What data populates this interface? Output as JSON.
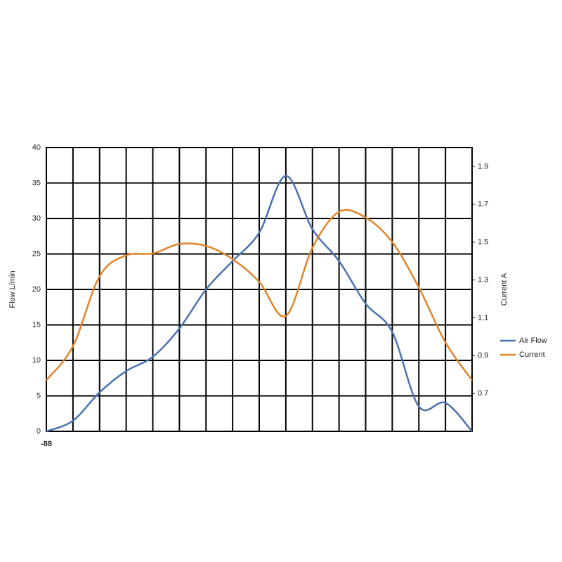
{
  "chart_data": {
    "type": "line",
    "y_label": "Flow  L/min",
    "y2_label": "Current  A",
    "categories": [
      "-88",
      null,
      null,
      null,
      null,
      null,
      null,
      null,
      null,
      null,
      null,
      null,
      null,
      null,
      null,
      null,
      null
    ],
    "series": [
      {
        "name": "Air Flow",
        "color": "#4a73b0",
        "values": [
          0,
          1.5,
          5.5,
          8.5,
          10.5,
          14.5,
          20,
          24,
          28,
          36,
          28.5,
          24,
          18,
          14,
          3.5,
          4,
          0
        ]
      },
      {
        "name": "Current",
        "color": "#e0852b",
        "axis": "y2",
        "values": [
          0.77,
          0.95,
          1.32,
          1.43,
          1.44,
          1.49,
          1.48,
          1.41,
          1.29,
          1.11,
          1.47,
          1.66,
          1.63,
          1.5,
          1.26,
          0.97,
          0.77
        ]
      }
    ],
    "ylim": [
      0,
      40
    ],
    "yticks": [
      0,
      5,
      10,
      15,
      20,
      25,
      30,
      35,
      40
    ],
    "y2lim": [
      0.5,
      2.0
    ],
    "y2ticks": [
      0.7,
      0.9,
      1.1,
      1.3,
      1.5,
      1.7,
      1.9
    ],
    "grid": true,
    "legend": "right"
  }
}
